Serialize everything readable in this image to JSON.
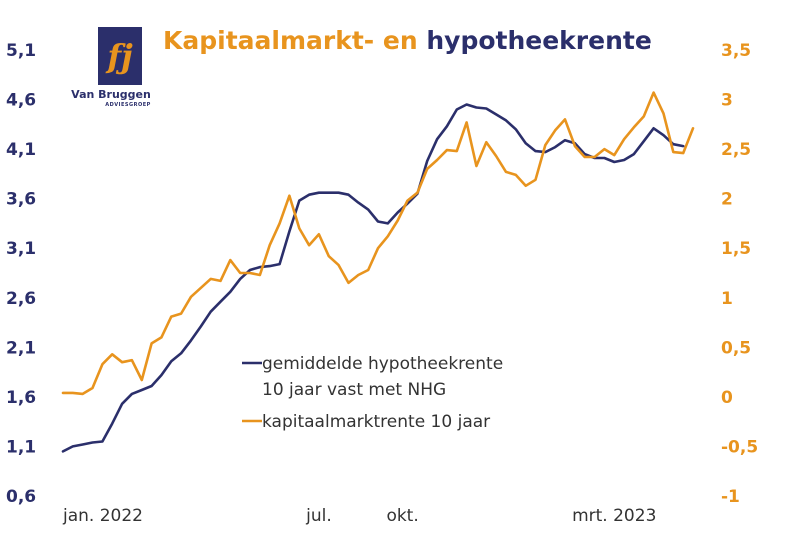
{
  "chart_data": {
    "type": "line",
    "title_part1": "Kapitaalmarkt- en",
    "title_part2": "hypotheekrente",
    "logo": {
      "name": "Van Bruggen",
      "sub": "ADVIESGROEP",
      "glyph": "fj"
    },
    "x_tick_labels": [
      {
        "label": "jan. 2022",
        "i": 0
      },
      {
        "label": "jul.",
        "i": 26
      },
      {
        "label": "okt.",
        "i": 34.5
      },
      {
        "label": "mrt. 2023",
        "i": 56
      }
    ],
    "y_left": {
      "ticks": [
        "0,6",
        "1,1",
        "1,6",
        "2,1",
        "2,6",
        "3,1",
        "3,6",
        "4,1",
        "4,6",
        "5,1"
      ],
      "lim": [
        0.6,
        5.1
      ]
    },
    "y_right": {
      "ticks": [
        "-1",
        "-0,5",
        "0",
        "0,5",
        "1",
        "1,5",
        "2",
        "2,5",
        "3",
        "3,5"
      ],
      "lim": [
        -1,
        3.5
      ]
    },
    "legend": [
      {
        "line1": "gemiddelde hypotheekrente",
        "line2": "10 jaar vast met NHG",
        "color": "#2b2f6b"
      },
      {
        "line1": "kapitaalmarktrente 10 jaar",
        "line2": "",
        "color": "#e8941e"
      }
    ],
    "series": [
      {
        "name": "gemiddelde hypotheekrente 10 jaar vast met NHG",
        "axis": "left",
        "color": "#2b2f6b",
        "values": [
          1.05,
          1.1,
          1.12,
          1.14,
          1.15,
          1.33,
          1.53,
          1.63,
          1.67,
          1.71,
          1.82,
          1.96,
          2.04,
          2.17,
          2.31,
          2.46,
          2.56,
          2.66,
          2.79,
          2.88,
          2.91,
          2.92,
          2.94,
          3.27,
          3.58,
          3.64,
          3.66,
          3.66,
          3.66,
          3.64,
          3.56,
          3.49,
          3.37,
          3.35,
          3.46,
          3.55,
          3.65,
          3.98,
          4.2,
          4.33,
          4.5,
          4.55,
          4.52,
          4.51,
          4.45,
          4.39,
          4.3,
          4.16,
          4.08,
          4.07,
          4.12,
          4.19,
          4.16,
          4.05,
          4.01,
          4.01,
          3.97,
          3.99,
          4.05,
          4.18,
          4.31,
          4.24,
          4.15,
          4.13
        ]
      },
      {
        "name": "kapitaalmarktrente 10 jaar",
        "axis": "right",
        "color": "#e8941e",
        "values": [
          0.04,
          0.04,
          0.03,
          0.09,
          0.33,
          0.43,
          0.35,
          0.37,
          0.17,
          0.54,
          0.6,
          0.81,
          0.84,
          1.01,
          1.1,
          1.19,
          1.17,
          1.38,
          1.25,
          1.25,
          1.23,
          1.53,
          1.75,
          2.03,
          1.7,
          1.53,
          1.64,
          1.42,
          1.33,
          1.15,
          1.23,
          1.28,
          1.5,
          1.62,
          1.78,
          1.98,
          2.06,
          2.3,
          2.39,
          2.49,
          2.48,
          2.77,
          2.33,
          2.57,
          2.43,
          2.27,
          2.24,
          2.13,
          2.19,
          2.54,
          2.69,
          2.8,
          2.53,
          2.42,
          2.42,
          2.5,
          2.44,
          2.6,
          2.72,
          2.83,
          3.07,
          2.86,
          2.47,
          2.46,
          2.71
        ]
      }
    ],
    "grid": false
  }
}
